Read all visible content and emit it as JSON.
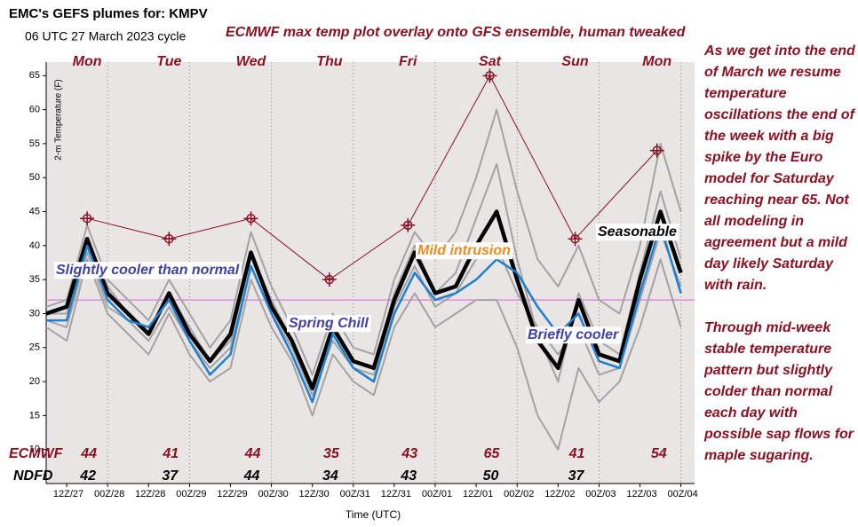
{
  "chart_data": {
    "type": "line",
    "title": "EMC's GEFS plumes for: KMPV",
    "subtitle": "06 UTC 27 March 2023 cycle",
    "overlay_title": "ECMWF max temp plot overlay onto GFS ensemble, human tweaked",
    "y_label": "2-m Temperature (F)",
    "x_label": "Time (UTC)",
    "xlim": [
      0,
      190
    ],
    "ylim": [
      5,
      67
    ],
    "yticks": [
      10,
      15,
      20,
      25,
      30,
      35,
      40,
      45,
      50,
      55,
      60,
      65
    ],
    "xticks": [
      {
        "value": 6,
        "label": "12Z/27"
      },
      {
        "value": 18,
        "label": "00Z/28"
      },
      {
        "value": 30,
        "label": "12Z/28"
      },
      {
        "value": 42,
        "label": "00Z/29"
      },
      {
        "value": 54,
        "label": "12Z/29"
      },
      {
        "value": 66,
        "label": "00Z/30"
      },
      {
        "value": 78,
        "label": "12Z/30"
      },
      {
        "value": 90,
        "label": "00Z/31"
      },
      {
        "value": 102,
        "label": "12Z/31"
      },
      {
        "value": 114,
        "label": "00Z/01"
      },
      {
        "value": 126,
        "label": "12Z/01"
      },
      {
        "value": 138,
        "label": "00Z/02"
      },
      {
        "value": 150,
        "label": "12Z/02"
      },
      {
        "value": 162,
        "label": "00Z/03"
      },
      {
        "value": 174,
        "label": "12Z/03"
      },
      {
        "value": 186,
        "label": "00Z/04"
      }
    ],
    "grid": true,
    "background": "#e9e5e5",
    "x": [
      0,
      6,
      12,
      18,
      24,
      30,
      36,
      42,
      48,
      54,
      60,
      66,
      72,
      78,
      84,
      90,
      96,
      102,
      108,
      114,
      120,
      126,
      132,
      138,
      144,
      150,
      156,
      162,
      168,
      174,
      180,
      186
    ],
    "series": [
      {
        "color": "#a3a3a3",
        "width": 2,
        "values": [
          31,
          32,
          43,
          35,
          32,
          29,
          35,
          30,
          25,
          29,
          42,
          34,
          28,
          21,
          30,
          25,
          24,
          35,
          42,
          38,
          42,
          50,
          60,
          48,
          38,
          34,
          40,
          32,
          30,
          40,
          55,
          45
        ]
      },
      {
        "color": "#a3a3a3",
        "width": 2,
        "values": [
          28,
          26,
          38,
          30,
          27,
          24,
          30,
          24,
          20,
          22,
          35,
          28,
          23,
          15,
          24,
          20,
          18,
          28,
          33,
          28,
          30,
          32,
          32,
          25,
          15,
          10,
          22,
          17,
          20,
          28,
          38,
          28
        ]
      },
      {
        "color": "#a3a3a3",
        "width": 2,
        "values": [
          30,
          30,
          41,
          34,
          30,
          27,
          33,
          28,
          23,
          26,
          39,
          32,
          26,
          19,
          28,
          23,
          22,
          33,
          40,
          33,
          36,
          44,
          52,
          38,
          27,
          20,
          33,
          26,
          24,
          36,
          48,
          38
        ]
      },
      {
        "color": "#a3a3a3",
        "width": 2,
        "values": [
          29,
          28,
          39,
          31,
          29,
          26,
          31,
          26,
          22,
          25,
          37,
          30,
          25,
          18,
          26,
          22,
          21,
          31,
          37,
          31,
          33,
          38,
          40,
          33,
          28,
          24,
          28,
          21,
          22,
          32,
          42,
          34
        ]
      },
      {
        "color": "#000000",
        "width": 4.5,
        "values": [
          30,
          31,
          41,
          33,
          30,
          27,
          33,
          27,
          23,
          27,
          39,
          31,
          26,
          19,
          28,
          23,
          22,
          32,
          39,
          33,
          34,
          40,
          45,
          35,
          26,
          22,
          32,
          24,
          23,
          35,
          45,
          36
        ]
      },
      {
        "color": "#1f7fd1",
        "width": 2.5,
        "values": [
          29,
          29,
          40,
          32,
          29,
          28,
          32,
          26,
          21,
          24,
          37,
          30,
          24,
          17,
          27,
          22,
          20,
          30,
          36,
          32,
          33,
          35,
          38,
          36,
          31,
          27,
          30,
          23,
          22,
          33,
          43,
          33
        ]
      }
    ],
    "reference_line": {
      "value": 32,
      "color": "#e08ae0"
    },
    "ecmwf": {
      "name": "ECMWF",
      "color": "#8b1022",
      "x": [
        12,
        36,
        60,
        83,
        106,
        130,
        155,
        179
      ],
      "values": [
        44,
        41,
        44,
        35,
        43,
        65,
        41,
        54
      ]
    },
    "ndfd": {
      "name": "NDFD",
      "values": [
        42,
        37,
        44,
        34,
        43,
        50,
        37,
        null
      ]
    },
    "day_labels": [
      "Mon",
      "Tue",
      "Wed",
      "Thu",
      "Fri",
      "Sat",
      "Sun",
      "Mon"
    ],
    "annotations": [
      {
        "text": "Slightly cooler than normal",
        "color": "#4040a8"
      },
      {
        "text": "Spring Chill",
        "color": "#4040a8"
      },
      {
        "text": "Mild intrusion",
        "color": "#f08a20"
      },
      {
        "text": "Briefly cooler",
        "color": "#4040a8"
      },
      {
        "text": "Seasonable",
        "color": "#000000"
      }
    ],
    "note": [
      "As we get into the end of March we resume temperature oscillations the end of the week with a big spike by the Euro model for Saturday reaching near 65. Not all modeling in agreement but a mild day likely Saturday with rain.",
      "Through mid-week stable temperature pattern but slightly colder than normal each day with possible sap flows for maple sugaring."
    ]
  }
}
